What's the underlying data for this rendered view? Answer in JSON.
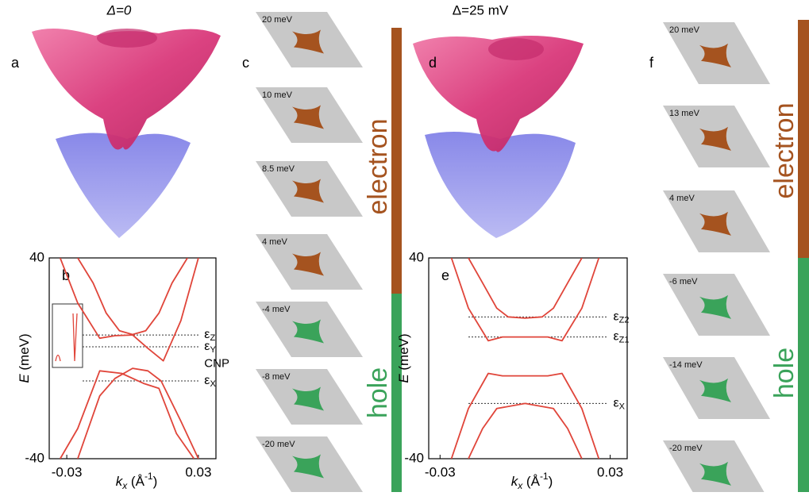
{
  "titles": [
    "Δ=0",
    "Δ=25 mV"
  ],
  "panel_labels": [
    "a",
    "b",
    "c",
    "d",
    "e",
    "f"
  ],
  "side_labels": [
    "electron",
    "hole"
  ],
  "contours_c": [
    {
      "label": "20 meV",
      "color": "#a5531f"
    },
    {
      "label": "10 meV",
      "color": "#a5531f"
    },
    {
      "label": "8.5 meV",
      "color": "#a5531f"
    },
    {
      "label": "4 meV",
      "color": "#a5531f"
    },
    {
      "label": "-4 meV",
      "color": "#3aa35a"
    },
    {
      "label": "-8 meV",
      "color": "#3aa35a"
    },
    {
      "label": "-20 meV",
      "color": "#3aa35a"
    }
  ],
  "contours_f": [
    {
      "label": "20 meV",
      "color": "#a5531f"
    },
    {
      "label": "13 meV",
      "color": "#a5531f"
    },
    {
      "label": "4 meV",
      "color": "#a5531f"
    },
    {
      "label": "-6 meV",
      "color": "#3aa35a"
    },
    {
      "label": "-14 meV",
      "color": "#3aa35a"
    },
    {
      "label": "-20 meV",
      "color": "#3aa35a"
    }
  ],
  "chart_data": [
    {
      "type": "line",
      "xlim": [
        -0.038,
        0.038
      ],
      "xticks": [
        -0.03,
        0.03
      ],
      "ylim": [
        -40,
        40
      ],
      "yticks": [
        -40,
        40
      ],
      "y_label": {
        "var": "E",
        "unit": " (meV)"
      },
      "x_label": {
        "var": "k",
        "sub": "x",
        "unit": " (Å",
        "sup": "-1",
        "close": ")"
      },
      "series": [
        {
          "color": "#e0453a",
          "x": [
            -0.025,
            -0.018,
            -0.012,
            -0.006,
            0,
            0.006,
            0.012,
            0.018,
            0.025
          ],
          "values": [
            40,
            30,
            18,
            11,
            9.5,
            11,
            18,
            30,
            40
          ]
        },
        {
          "color": "#e0453a",
          "x": [
            -0.033,
            -0.025,
            -0.015,
            -0.008,
            0,
            0.007,
            0.014,
            0.022,
            0.03
          ],
          "values": [
            40,
            22,
            8,
            9,
            9.3,
            4,
            -1,
            15,
            40
          ]
        },
        {
          "color": "#e0453a",
          "x": [
            -0.025,
            -0.015,
            -0.008,
            0,
            0.007,
            0.013,
            0.022,
            0.03
          ],
          "values": [
            -40,
            -15,
            -8,
            -4,
            -5,
            -9,
            -25,
            -40
          ]
        },
        {
          "color": "#e0453a",
          "x": [
            -0.033,
            -0.025,
            -0.015,
            -0.005,
            0.005,
            0.012,
            0.02,
            0.028
          ],
          "values": [
            -40,
            -28,
            -5,
            -6,
            -10,
            -12,
            -30,
            -40
          ]
        }
      ],
      "levels": [
        {
          "symbol": "ε",
          "sub": "Z",
          "value": 9.3
        },
        {
          "symbol": "ε",
          "sub": "Y",
          "value": 4.6
        },
        {
          "symbol": "ε",
          "sub": "X",
          "value": -9
        }
      ],
      "notes": [
        "CNP"
      ]
    },
    {
      "type": "line",
      "xlim": [
        -0.034,
        0.036
      ],
      "xticks": [
        -0.03,
        0.03
      ],
      "ylim": [
        -40,
        40
      ],
      "yticks": [
        -40,
        40
      ],
      "y_label": {
        "var": "E",
        "unit": " (meV)"
      },
      "x_label": {
        "var": "k",
        "sub": "x",
        "unit": " (Å",
        "sup": "-1",
        "close": ")"
      },
      "series": [
        {
          "color": "#e0453a",
          "x": [
            -0.02,
            -0.015,
            -0.01,
            -0.006,
            0,
            0.006,
            0.01,
            0.015,
            0.02
          ],
          "values": [
            40,
            30,
            20,
            16.5,
            16,
            16.5,
            20,
            30,
            40
          ]
        },
        {
          "color": "#e0453a",
          "x": [
            -0.026,
            -0.02,
            -0.013,
            -0.008,
            0,
            0.008,
            0.013,
            0.02,
            0.026
          ],
          "values": [
            40,
            20,
            7,
            8.5,
            8.5,
            8.5,
            7,
            20,
            40
          ]
        },
        {
          "color": "#e0453a",
          "x": [
            -0.026,
            -0.02,
            -0.013,
            -0.008,
            0,
            0.008,
            0.013,
            0.02,
            0.026
          ],
          "values": [
            -40,
            -20,
            -6,
            -7,
            -7,
            -7,
            -6,
            -20,
            -40
          ]
        },
        {
          "color": "#e0453a",
          "x": [
            -0.02,
            -0.015,
            -0.01,
            0,
            0.01,
            0.015,
            0.02
          ],
          "values": [
            -40,
            -28,
            -20,
            -18,
            -20,
            -28,
            -40
          ]
        }
      ],
      "levels": [
        {
          "symbol": "ε",
          "sub": "Z2",
          "value": 16.5
        },
        {
          "symbol": "ε",
          "sub": "Z1",
          "value": 8.5
        },
        {
          "symbol": "ε",
          "sub": "X",
          "value": -18
        }
      ],
      "notes": []
    }
  ]
}
